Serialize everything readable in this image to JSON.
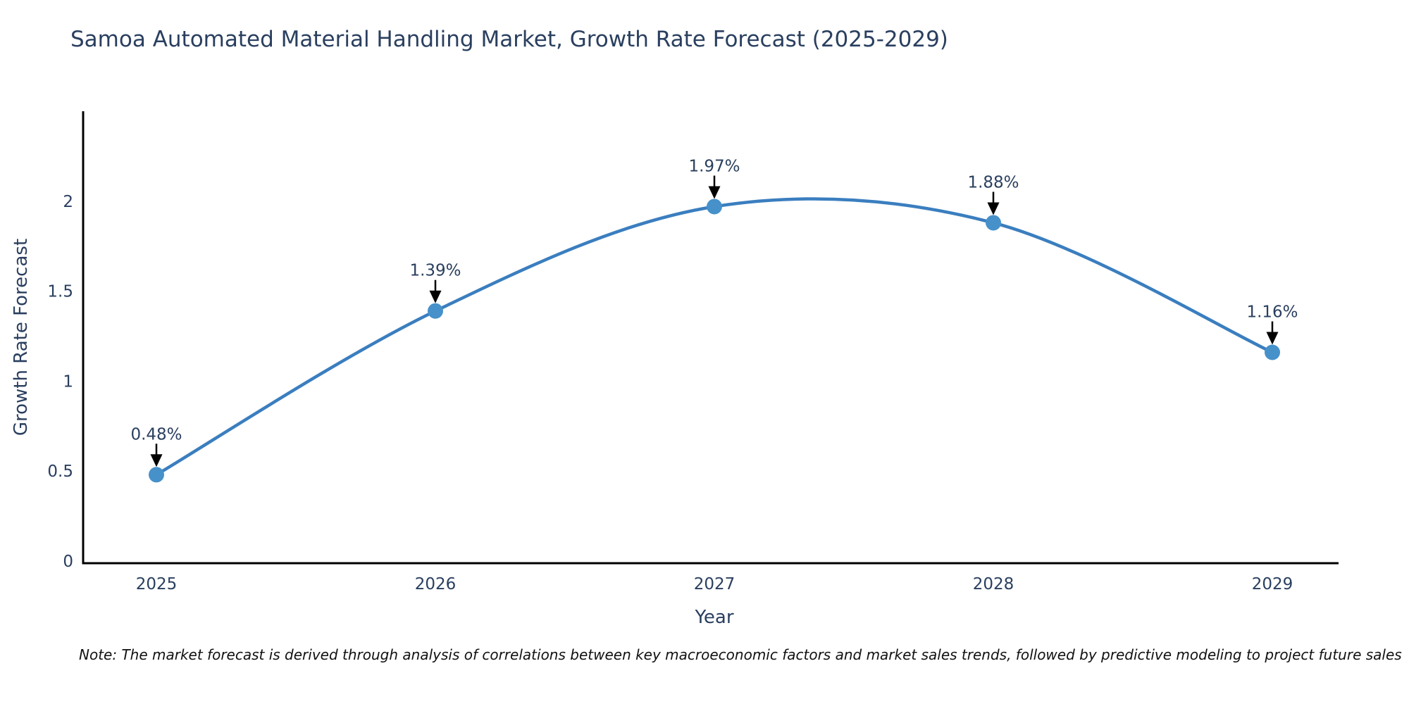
{
  "note": "Note: The market forecast is derived through analysis of correlations between key macroeconomic factors and market sales trends, followed by predictive modeling to project future sales",
  "chart_data": {
    "type": "line",
    "title": "Samoa Automated Material Handling Market, Growth Rate Forecast (2025-2029)",
    "x": [
      "2025",
      "2026",
      "2027",
      "2028",
      "2029"
    ],
    "y": [
      0.48,
      1.39,
      1.97,
      1.88,
      1.16
    ],
    "point_labels": [
      "0.48%",
      "1.39%",
      "1.97%",
      "1.88%",
      "1.16%"
    ],
    "xlabel": "Year",
    "ylabel": "Growth Rate Forecast",
    "yticks": [
      "0",
      "0.5",
      "1",
      "1.5",
      "2"
    ],
    "ytick_values": [
      0,
      0.5,
      1,
      1.5,
      2
    ],
    "ylim": [
      0,
      2.5
    ],
    "line_shape": "spline",
    "grid": false,
    "legend": "none",
    "colors": {
      "line": "#3a7ebf",
      "marker": "#4691ca",
      "axis": "#000000",
      "text": "#2a3f5f",
      "arrow": "#000000",
      "background": "#ffffff"
    }
  }
}
